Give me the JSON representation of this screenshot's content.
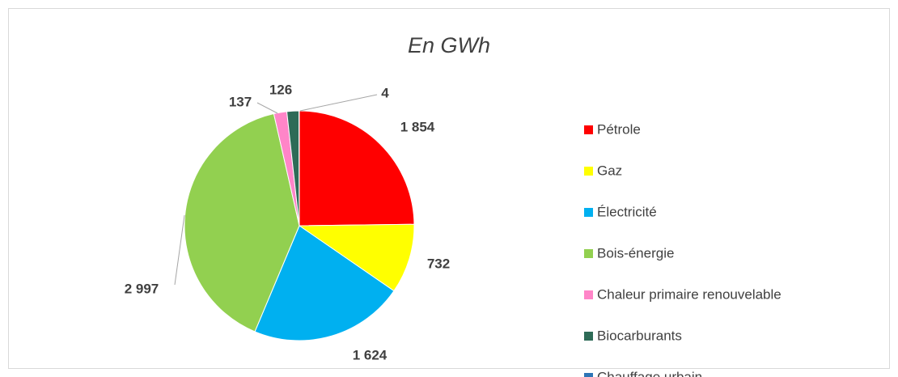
{
  "chart_data": {
    "type": "pie",
    "title": "En GWh",
    "categories": [
      "Pétrole",
      "Gaz",
      "Électricité",
      "Bois-énergie",
      "Chaleur primaire renouvelable",
      "Biocarburants",
      "Chauffage urbain"
    ],
    "values": [
      1854,
      732,
      1624,
      2997,
      137,
      126,
      4
    ],
    "value_labels": [
      "1 854",
      "732",
      "1 624",
      "2 997",
      "137",
      "126",
      "4"
    ],
    "colors": [
      "#ff0000",
      "#ffff00",
      "#00b0f0",
      "#92d050",
      "#ff85c8",
      "#2e6b57",
      "#2e75b6"
    ],
    "legend": "right"
  }
}
